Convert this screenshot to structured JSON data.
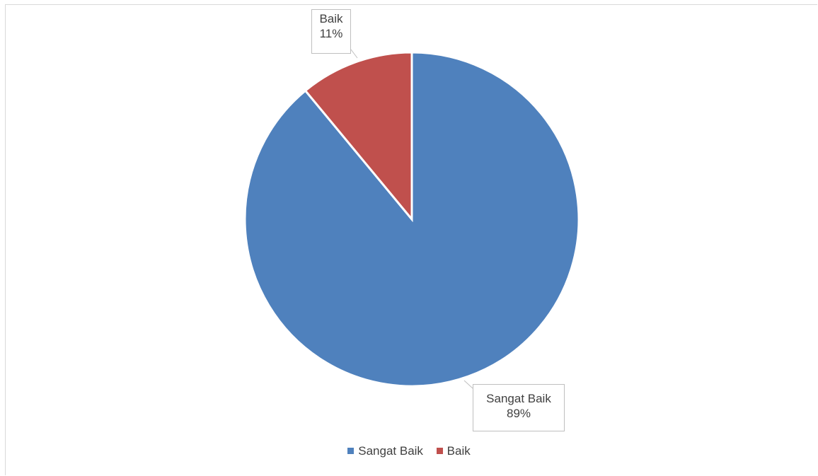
{
  "chart_data": {
    "type": "pie",
    "slices": [
      {
        "label": "Sangat Baik",
        "value": 89,
        "display": "89%",
        "color": "#4f81bd"
      },
      {
        "label": "Baik",
        "value": 11,
        "display": "11%",
        "color": "#c0504d"
      }
    ],
    "start_angle_deg": 0,
    "direction": "clockwise",
    "legend_position": "bottom",
    "data_labels": "callout"
  }
}
